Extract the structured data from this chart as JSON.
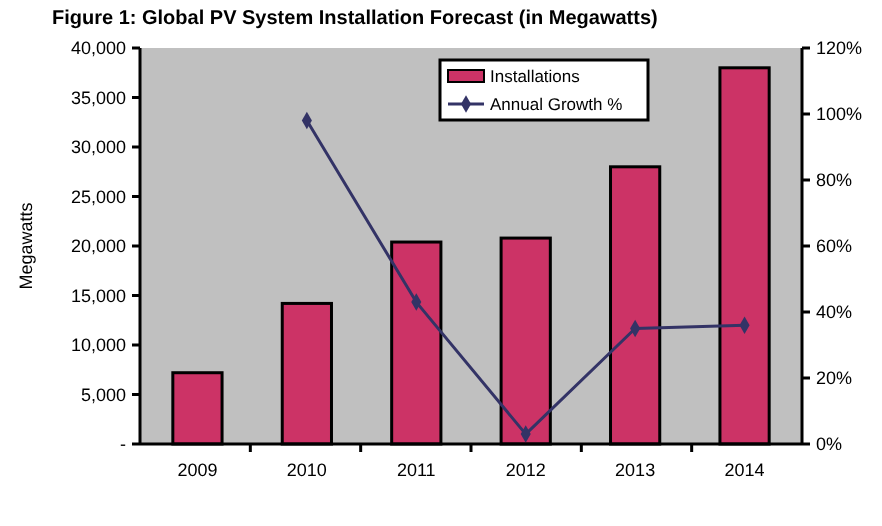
{
  "chart_data": {
    "type": "bar",
    "title": "Figure 1: Global PV System Installation Forecast (in Megawatts)",
    "ylabel": "Megawatts",
    "categories": [
      "2009",
      "2010",
      "2011",
      "2012",
      "2013",
      "2014"
    ],
    "series": [
      {
        "name": "Installations",
        "color": "#cc3366",
        "values": [
          7200,
          14200,
          20400,
          20800,
          28000,
          38000
        ]
      },
      {
        "name": "Annual Growth %",
        "type": "line",
        "axis": "y2",
        "color": "#333366",
        "marker": "diamond",
        "values": [
          null,
          98,
          43,
          3,
          35,
          36
        ]
      }
    ],
    "ylim": [
      0,
      40000
    ],
    "yticks": [
      {
        "value": 0,
        "label": "-"
      },
      {
        "value": 5000,
        "label": "5,000"
      },
      {
        "value": 10000,
        "label": "10,000"
      },
      {
        "value": 15000,
        "label": "15,000"
      },
      {
        "value": 20000,
        "label": "20,000"
      },
      {
        "value": 25000,
        "label": "25,000"
      },
      {
        "value": 30000,
        "label": "30,000"
      },
      {
        "value": 35000,
        "label": "35,000"
      },
      {
        "value": 40000,
        "label": "40,000"
      }
    ],
    "y2lim": [
      0,
      120
    ],
    "y2ticks": [
      {
        "value": 0,
        "label": "0%"
      },
      {
        "value": 20,
        "label": "20%"
      },
      {
        "value": 40,
        "label": "40%"
      },
      {
        "value": 60,
        "label": "60%"
      },
      {
        "value": 80,
        "label": "80%"
      },
      {
        "value": 100,
        "label": "100%"
      },
      {
        "value": 120,
        "label": "120%"
      }
    ],
    "legend": "top",
    "grid": false
  }
}
